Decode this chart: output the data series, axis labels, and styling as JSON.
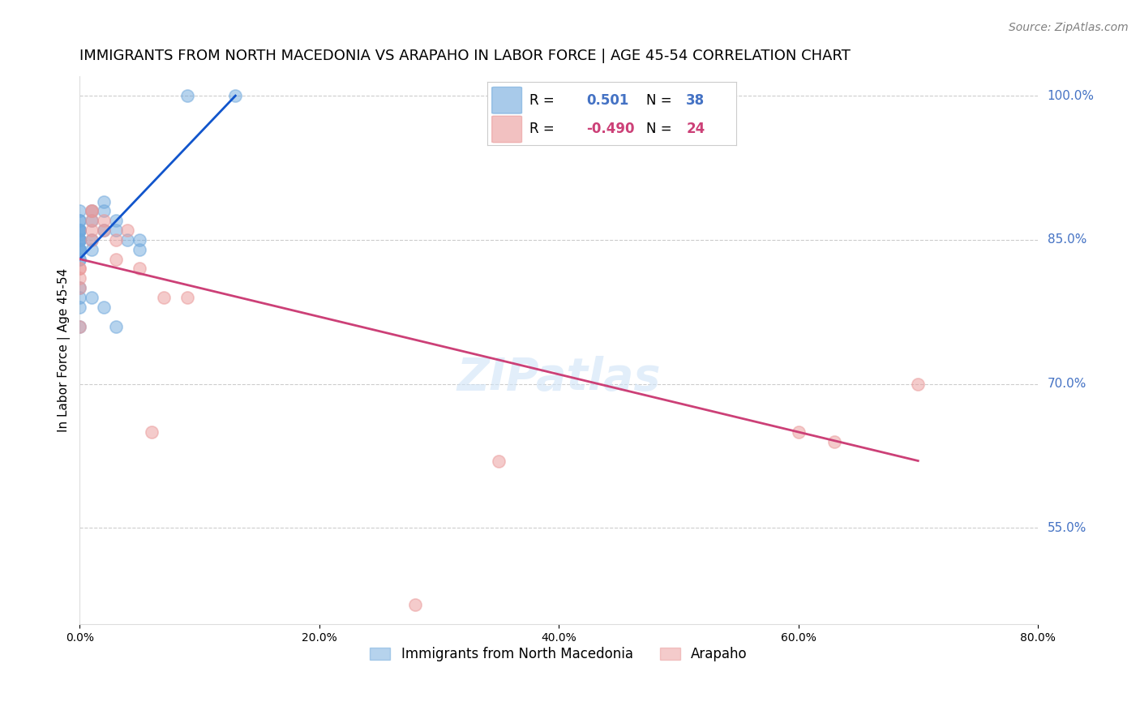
{
  "title": "IMMIGRANTS FROM NORTH MACEDONIA VS ARAPAHO IN LABOR FORCE | AGE 45-54 CORRELATION CHART",
  "source": "Source: ZipAtlas.com",
  "ylabel": "In Labor Force | Age 45-54",
  "xlim": [
    0.0,
    0.8
  ],
  "ylim": [
    0.45,
    1.02
  ],
  "blue_color": "#6fa8dc",
  "pink_color": "#ea9999",
  "blue_line_color": "#1155cc",
  "pink_line_color": "#cc4077",
  "watermark": "ZIPatlas",
  "blue_scatter_x": [
    0.0,
    0.0,
    0.0,
    0.0,
    0.0,
    0.0,
    0.0,
    0.0,
    0.0,
    0.0,
    0.0,
    0.0,
    0.0,
    0.0,
    0.0,
    0.0,
    0.0,
    0.0,
    0.0,
    0.0,
    0.0,
    0.01,
    0.01,
    0.01,
    0.01,
    0.01,
    0.02,
    0.02,
    0.02,
    0.02,
    0.03,
    0.03,
    0.03,
    0.04,
    0.05,
    0.05,
    0.09,
    0.13
  ],
  "blue_scatter_y": [
    0.88,
    0.87,
    0.87,
    0.86,
    0.86,
    0.86,
    0.86,
    0.85,
    0.85,
    0.85,
    0.85,
    0.84,
    0.84,
    0.84,
    0.84,
    0.83,
    0.83,
    0.8,
    0.79,
    0.78,
    0.76,
    0.88,
    0.87,
    0.85,
    0.84,
    0.79,
    0.89,
    0.88,
    0.86,
    0.78,
    0.87,
    0.86,
    0.76,
    0.85,
    0.85,
    0.84,
    1.0,
    1.0
  ],
  "blue_line_x": [
    0.0,
    0.13
  ],
  "blue_line_y": [
    0.83,
    1.0
  ],
  "pink_scatter_x": [
    0.0,
    0.0,
    0.0,
    0.0,
    0.0,
    0.01,
    0.01,
    0.01,
    0.01,
    0.01,
    0.02,
    0.02,
    0.03,
    0.03,
    0.04,
    0.05,
    0.06,
    0.07,
    0.09,
    0.28,
    0.35,
    0.6,
    0.63,
    0.7
  ],
  "pink_scatter_y": [
    0.82,
    0.82,
    0.81,
    0.8,
    0.76,
    0.88,
    0.88,
    0.87,
    0.86,
    0.85,
    0.87,
    0.86,
    0.85,
    0.83,
    0.86,
    0.82,
    0.65,
    0.79,
    0.79,
    0.47,
    0.62,
    0.65,
    0.64,
    0.7
  ],
  "pink_line_x": [
    0.0,
    0.7
  ],
  "pink_line_y": [
    0.83,
    0.62
  ],
  "grid_color": "#cccccc",
  "background_color": "#ffffff",
  "title_fontsize": 13,
  "axis_label_fontsize": 11,
  "tick_fontsize": 10,
  "legend_fontsize": 12,
  "source_fontsize": 10,
  "watermark_fontsize": 40,
  "ytick_vals": [
    0.55,
    0.7,
    0.85,
    1.0
  ],
  "ytick_labels": [
    "55.0%",
    "70.0%",
    "85.0%",
    "100.0%"
  ],
  "xtick_vals": [
    0.0,
    0.2,
    0.4,
    0.6,
    0.8
  ],
  "xtick_labels": [
    "0.0%",
    "20.0%",
    "40.0%",
    "60.0%",
    "80.0%"
  ],
  "blue_R_val": "0.501",
  "blue_N_val": "38",
  "pink_R_val": "-0.490",
  "pink_N_val": "24",
  "right_tick_color": "#4472c4",
  "pink_val_color": "#cc4077"
}
